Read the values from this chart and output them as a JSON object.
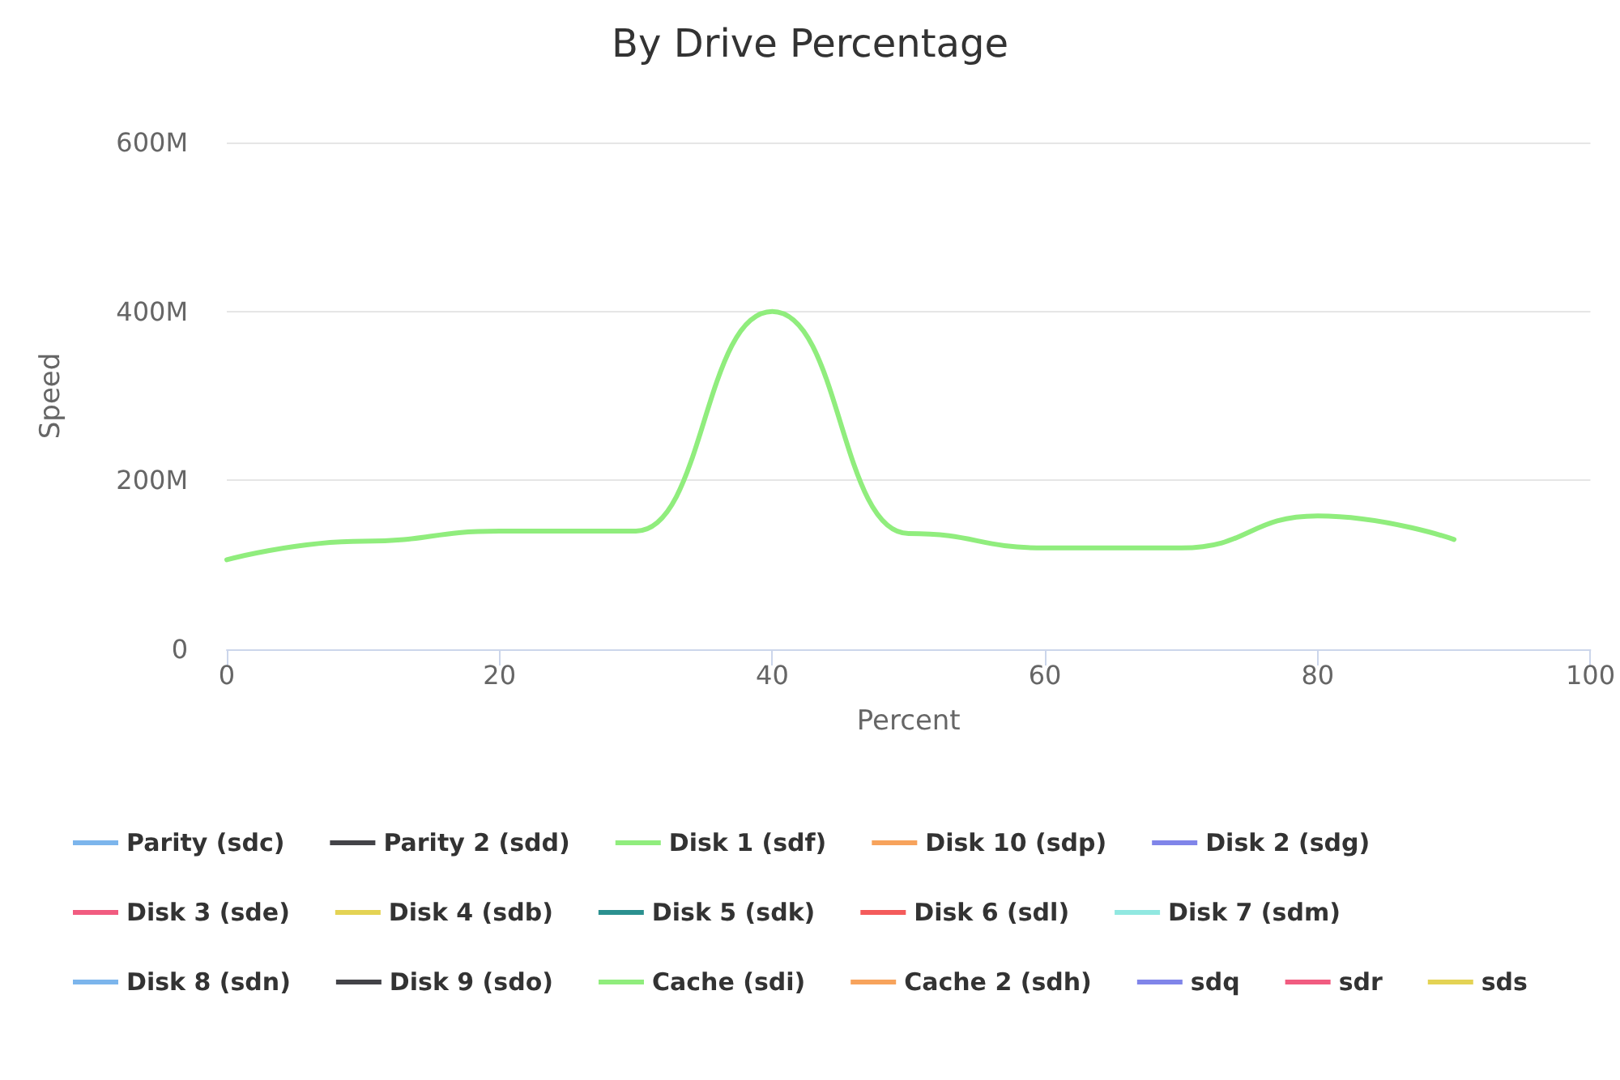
{
  "chart_data": {
    "type": "line",
    "title": "By Drive Percentage",
    "xlabel": "Percent",
    "ylabel": "Speed",
    "x": [
      0,
      10,
      20,
      30,
      40,
      50,
      60,
      70,
      80,
      90
    ],
    "series": [
      {
        "name": "Parity (sdc)",
        "color": "#7cb5ec",
        "values": [
          null,
          null,
          null,
          null,
          null,
          null,
          null,
          null,
          null,
          null
        ]
      },
      {
        "name": "Parity 2 (sdd)",
        "color": "#434348",
        "values": [
          null,
          null,
          null,
          null,
          null,
          null,
          null,
          null,
          null,
          null
        ]
      },
      {
        "name": "Disk 1 (sdf)",
        "color": "#90ed7d",
        "values": [
          106,
          128,
          140,
          140,
          400,
          137,
          120,
          120,
          158,
          130
        ]
      },
      {
        "name": "Disk 10 (sdp)",
        "color": "#f7a35c",
        "values": [
          null,
          null,
          null,
          null,
          null,
          null,
          null,
          null,
          null,
          null
        ]
      },
      {
        "name": "Disk 2 (sdg)",
        "color": "#8085e9",
        "values": [
          null,
          null,
          null,
          null,
          null,
          null,
          null,
          null,
          null,
          null
        ]
      },
      {
        "name": "Disk 3 (sde)",
        "color": "#f15c80",
        "values": [
          null,
          null,
          null,
          null,
          null,
          null,
          null,
          null,
          null,
          null
        ]
      },
      {
        "name": "Disk 4 (sdb)",
        "color": "#e4d354",
        "values": [
          null,
          null,
          null,
          null,
          null,
          null,
          null,
          null,
          null,
          null
        ]
      },
      {
        "name": "Disk 5 (sdk)",
        "color": "#2b908f",
        "values": [
          null,
          null,
          null,
          null,
          null,
          null,
          null,
          null,
          null,
          null
        ]
      },
      {
        "name": "Disk 6 (sdl)",
        "color": "#f45b5b",
        "values": [
          null,
          null,
          null,
          null,
          null,
          null,
          null,
          null,
          null,
          null
        ]
      },
      {
        "name": "Disk 7 (sdm)",
        "color": "#91e8e1",
        "values": [
          null,
          null,
          null,
          null,
          null,
          null,
          null,
          null,
          null,
          null
        ]
      },
      {
        "name": "Disk 8 (sdn)",
        "color": "#7cb5ec",
        "values": [
          null,
          null,
          null,
          null,
          null,
          null,
          null,
          null,
          null,
          null
        ]
      },
      {
        "name": "Disk 9 (sdo)",
        "color": "#434348",
        "values": [
          null,
          null,
          null,
          null,
          null,
          null,
          null,
          null,
          null,
          null
        ]
      },
      {
        "name": "Cache (sdi)",
        "color": "#90ed7d",
        "values": [
          null,
          null,
          null,
          null,
          null,
          null,
          null,
          null,
          null,
          null
        ]
      },
      {
        "name": "Cache 2 (sdh)",
        "color": "#f7a35c",
        "values": [
          null,
          null,
          null,
          null,
          null,
          null,
          null,
          null,
          null,
          null
        ]
      },
      {
        "name": "sdq",
        "color": "#8085e9",
        "values": [
          null,
          null,
          null,
          null,
          null,
          null,
          null,
          null,
          null,
          null
        ]
      },
      {
        "name": "sdr",
        "color": "#f15c80",
        "values": [
          null,
          null,
          null,
          null,
          null,
          null,
          null,
          null,
          null,
          null
        ]
      },
      {
        "name": "sds",
        "color": "#e4d354",
        "values": [
          null,
          null,
          null,
          null,
          null,
          null,
          null,
          null,
          null,
          null
        ]
      }
    ],
    "xlim": [
      0,
      100
    ],
    "xticks": [
      0,
      20,
      40,
      60,
      80,
      100
    ],
    "ylim": [
      0,
      600
    ],
    "yticks": [
      0,
      {
        "value": 200,
        "label": "200M"
      },
      {
        "value": 400,
        "label": "400M"
      },
      {
        "value": 600,
        "label": "600M"
      }
    ],
    "grid": "y",
    "legend": "bottom",
    "marker": "none",
    "line_style": "solid"
  }
}
